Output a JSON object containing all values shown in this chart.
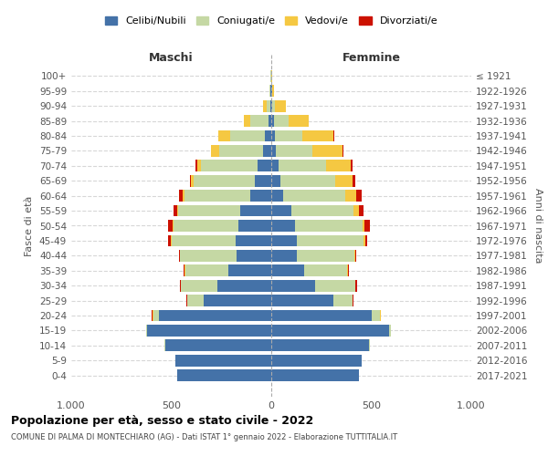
{
  "age_groups": [
    "0-4",
    "5-9",
    "10-14",
    "15-19",
    "20-24",
    "25-29",
    "30-34",
    "35-39",
    "40-44",
    "45-49",
    "50-54",
    "55-59",
    "60-64",
    "65-69",
    "70-74",
    "75-79",
    "80-84",
    "85-89",
    "90-94",
    "95-99",
    "100+"
  ],
  "birth_years": [
    "2017-2021",
    "2012-2016",
    "2007-2011",
    "2002-2006",
    "1997-2001",
    "1992-1996",
    "1987-1991",
    "1982-1986",
    "1977-1981",
    "1972-1976",
    "1967-1971",
    "1962-1966",
    "1957-1961",
    "1952-1956",
    "1947-1951",
    "1942-1946",
    "1937-1941",
    "1932-1936",
    "1927-1931",
    "1922-1926",
    "≤ 1921"
  ],
  "maschi": {
    "celibi": [
      470,
      480,
      530,
      620,
      560,
      340,
      270,
      215,
      175,
      180,
      165,
      155,
      105,
      80,
      70,
      40,
      30,
      15,
      5,
      3,
      2
    ],
    "coniugati": [
      0,
      0,
      2,
      5,
      30,
      80,
      180,
      215,
      280,
      320,
      325,
      310,
      330,
      310,
      280,
      220,
      175,
      90,
      20,
      4,
      1
    ],
    "vedovi": [
      0,
      0,
      0,
      2,
      5,
      2,
      2,
      2,
      2,
      3,
      5,
      5,
      10,
      10,
      20,
      40,
      60,
      30,
      15,
      2,
      0
    ],
    "divorziati": [
      0,
      0,
      0,
      0,
      2,
      3,
      5,
      5,
      5,
      15,
      20,
      20,
      15,
      5,
      10,
      2,
      2,
      0,
      0,
      0,
      0
    ]
  },
  "femmine": {
    "nubili": [
      440,
      450,
      490,
      590,
      500,
      310,
      220,
      165,
      130,
      130,
      120,
      100,
      60,
      45,
      35,
      25,
      20,
      15,
      5,
      3,
      2
    ],
    "coniugate": [
      0,
      0,
      2,
      8,
      45,
      95,
      200,
      215,
      285,
      330,
      335,
      310,
      310,
      275,
      240,
      180,
      135,
      70,
      15,
      2,
      0
    ],
    "vedove": [
      0,
      0,
      0,
      0,
      3,
      2,
      2,
      3,
      5,
      10,
      10,
      30,
      55,
      85,
      120,
      150,
      155,
      100,
      55,
      10,
      1
    ],
    "divorziate": [
      0,
      0,
      0,
      0,
      2,
      3,
      5,
      5,
      5,
      10,
      30,
      20,
      25,
      15,
      10,
      5,
      5,
      2,
      0,
      0,
      0
    ]
  },
  "colors": {
    "celibi": "#4472a8",
    "coniugati": "#c5d8a4",
    "vedovi": "#f5c842",
    "divorziati": "#cc1100"
  },
  "xlim": 1000,
  "title": "Popolazione per età, sesso e stato civile - 2022",
  "subtitle": "COMUNE DI PALMA DI MONTECHIARO (AG) - Dati ISTAT 1° gennaio 2022 - Elaborazione TUTTITALIA.IT",
  "ylabel_left": "Fasce di età",
  "ylabel_right": "Anni di nascita",
  "xlabel_left": "Maschi",
  "xlabel_right": "Femmine"
}
